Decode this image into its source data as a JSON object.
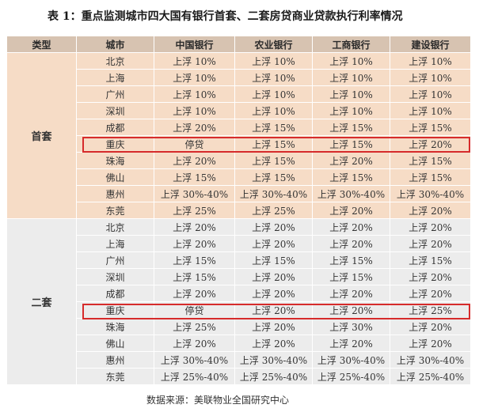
{
  "title": "表 1：重点监测城市四大国有银行首套、二套房贷商业贷款执行利率情况",
  "headers": [
    "类型",
    "城市",
    "中国银行",
    "农业银行",
    "工商银行",
    "建设银行"
  ],
  "groups": [
    {
      "type": "首套",
      "rows": [
        [
          "北京",
          "上浮 10%",
          "上浮 10%",
          "上浮 10%",
          "上浮 10%"
        ],
        [
          "上海",
          "上浮 10%",
          "上浮 10%",
          "上浮 10%",
          "上浮 10%"
        ],
        [
          "广州",
          "上浮 10%",
          "上浮 10%",
          "上浮 10%",
          "上浮 10%"
        ],
        [
          "深圳",
          "上浮 10%",
          "上浮 10%",
          "上浮 10%",
          "上浮 10%"
        ],
        [
          "成都",
          "上浮 20%",
          "上浮 15%",
          "上浮 15%",
          "上浮 15%"
        ],
        [
          "重庆",
          "停贷",
          "上浮 15%",
          "上浮 15%",
          "上浮 20%"
        ],
        [
          "珠海",
          "上浮 20%",
          "上浮 15%",
          "上浮 20%",
          "上浮 15%"
        ],
        [
          "佛山",
          "上浮 15%",
          "上浮 15%",
          "上浮 15%",
          "上浮 15%"
        ],
        [
          "惠州",
          "上浮 30%-40%",
          "上浮 30%-40%",
          "上浮 30%-40%",
          "上浮 30%-40%"
        ],
        [
          "东莞",
          "上浮 25%",
          "上浮 25%",
          "上浮 20%",
          "上浮 20%"
        ]
      ]
    },
    {
      "type": "二套",
      "rows": [
        [
          "北京",
          "上浮 20%",
          "上浮 20%",
          "上浮 20%",
          "上浮 20%"
        ],
        [
          "上海",
          "上浮 20%",
          "上浮 20%",
          "上浮 20%",
          "上浮 20%"
        ],
        [
          "广州",
          "上浮 15%",
          "上浮 15%",
          "上浮 15%",
          "上浮 15%"
        ],
        [
          "深圳",
          "上浮 15%",
          "上浮 20%",
          "上浮 15%",
          "上浮 20%"
        ],
        [
          "成都",
          "上浮 20%",
          "上浮 20%",
          "上浮 20%",
          "上浮 20%"
        ],
        [
          "重庆",
          "停贷",
          "上浮 20%",
          "上浮 20%",
          "上浮 25%"
        ],
        [
          "珠海",
          "上浮 25%",
          "上浮 20%",
          "上浮 30%",
          "上浮 20%"
        ],
        [
          "佛山",
          "上浮 20%",
          "上浮 20%",
          "上浮 20%",
          "上浮 20%"
        ],
        [
          "惠州",
          "上浮 30%-40%",
          "上浮 30%-40%",
          "上浮 30%-40%",
          "上浮 30%-40%"
        ],
        [
          "东莞",
          "上浮 25%-40%",
          "上浮 25%-40%",
          "上浮 25%-40%",
          "上浮 25%-40%"
        ]
      ]
    }
  ],
  "source": "数据来源：美联物业全国研究中心",
  "colors": {
    "header_bg": "#d7c3b1",
    "first_bg": "#f6dcc6",
    "second_bg": "#ececec",
    "highlight": "#d62b2b"
  }
}
